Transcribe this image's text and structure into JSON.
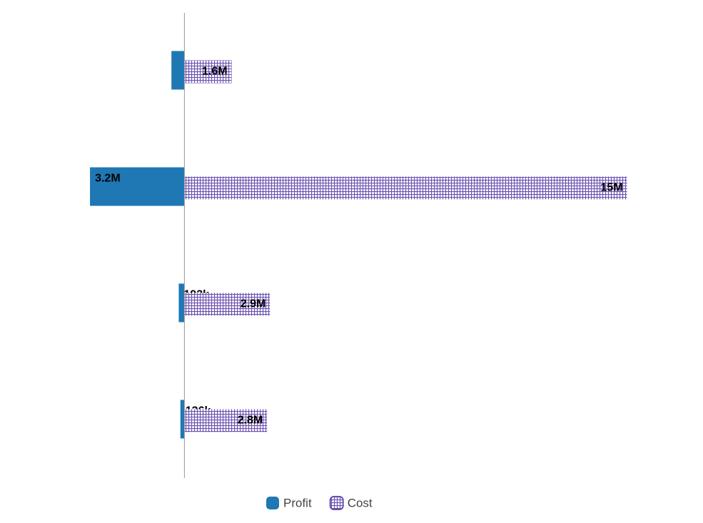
{
  "chart_data": {
    "type": "bar",
    "orientation": "horizontal",
    "categories": [
      null,
      null,
      null,
      null
    ],
    "xlim": [
      -4000000,
      16000000
    ],
    "legend": "bottom",
    "series": [
      {
        "name": "Profit",
        "color": "#1f77b4",
        "direction": "left",
        "pattern": "solid",
        "values": [
          440000,
          3200000,
          192000,
          136000
        ],
        "value_labels": [
          null,
          "3.2M",
          "192k",
          "136k"
        ]
      },
      {
        "name": "Cost",
        "color": "#6a4fb0",
        "direction": "right",
        "pattern": "grid",
        "values": [
          1600000,
          15000000,
          2900000,
          2800000
        ],
        "value_labels": [
          "1.6M",
          "15M",
          "2.9M",
          "2.8M"
        ]
      }
    ]
  }
}
